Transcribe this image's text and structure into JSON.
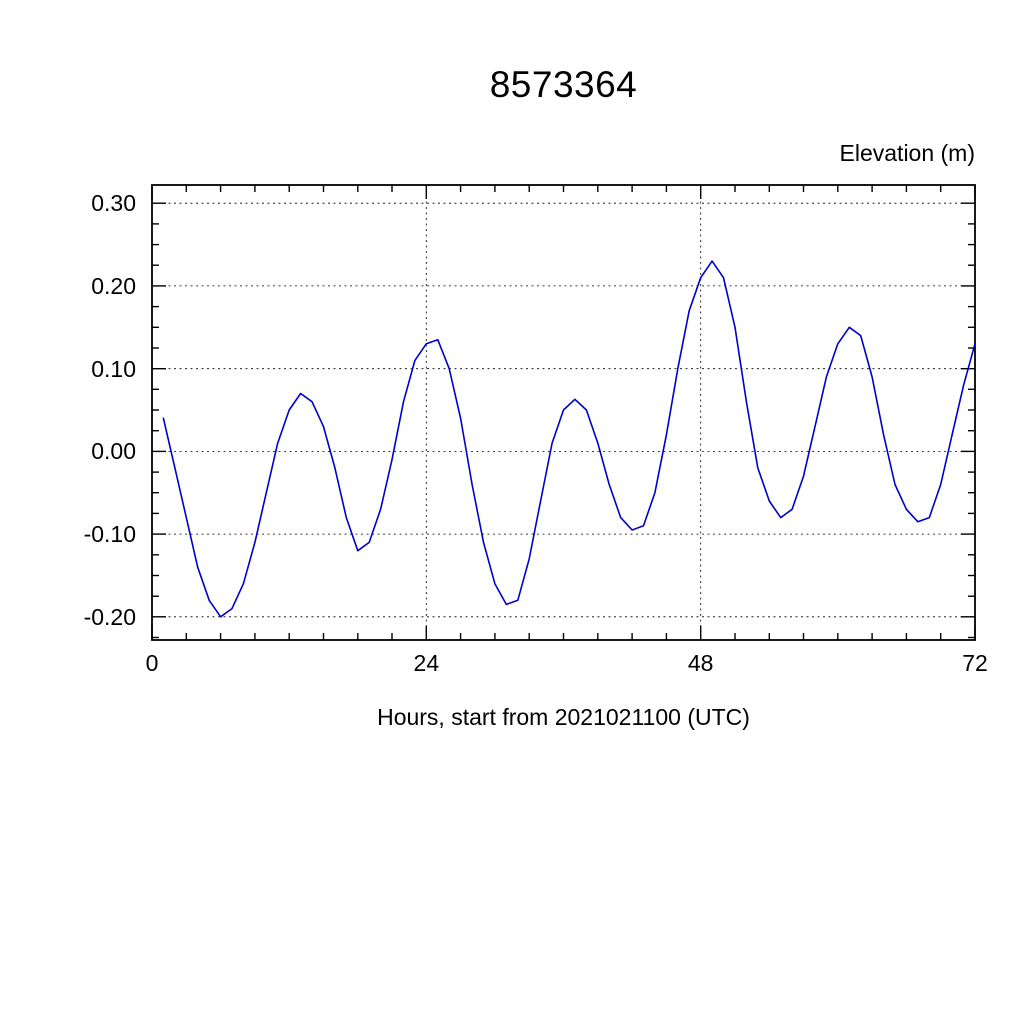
{
  "chart_data": {
    "type": "line",
    "title": "8573364",
    "xlabel": "Hours, start from 2021021100 (UTC)",
    "ylabel": "Elevation (m)",
    "xlim": [
      0,
      72
    ],
    "ylim": [
      -0.228,
      0.322
    ],
    "x_major_ticks": [
      0,
      24,
      48,
      72
    ],
    "x_tick_labels": [
      "0",
      "24",
      "48",
      "72"
    ],
    "x_minor_step": 3,
    "y_major_ticks": [
      0.3,
      0.2,
      0.1,
      0.0,
      -0.1,
      -0.2
    ],
    "y_tick_labels": [
      "0.30",
      "0.20",
      "0.10",
      "0.00",
      "-0.10",
      "-0.20"
    ],
    "y_minor_step": 0.025,
    "grid": true,
    "legend": "none",
    "line_color": "#0000c8",
    "series": [
      {
        "name": "elevation",
        "x": [
          1,
          2,
          3,
          4,
          5,
          6,
          7,
          8,
          9,
          10,
          11,
          12,
          13,
          14,
          15,
          16,
          17,
          18,
          19,
          20,
          21,
          22,
          23,
          24,
          25,
          26,
          27,
          28,
          29,
          30,
          31,
          32,
          33,
          34,
          35,
          36,
          37,
          38,
          39,
          40,
          41,
          42,
          43,
          44,
          45,
          46,
          47,
          48,
          49,
          50,
          51,
          52,
          53,
          54,
          55,
          56,
          57,
          58,
          59,
          60,
          61,
          62,
          63,
          64,
          65,
          66,
          67,
          68,
          69,
          70,
          71,
          72
        ],
        "values": [
          0.04,
          -0.02,
          -0.08,
          -0.14,
          -0.18,
          -0.2,
          -0.19,
          -0.16,
          -0.11,
          -0.05,
          0.01,
          0.05,
          0.07,
          0.06,
          0.03,
          -0.02,
          -0.08,
          -0.12,
          -0.11,
          -0.07,
          -0.01,
          0.06,
          0.11,
          0.13,
          0.135,
          0.1,
          0.04,
          -0.04,
          -0.11,
          -0.16,
          -0.185,
          -0.18,
          -0.13,
          -0.06,
          0.01,
          0.05,
          0.063,
          0.05,
          0.01,
          -0.04,
          -0.08,
          -0.095,
          -0.09,
          -0.05,
          0.02,
          0.1,
          0.17,
          0.21,
          0.23,
          0.21,
          0.15,
          0.06,
          -0.02,
          -0.06,
          -0.08,
          -0.07,
          -0.03,
          0.03,
          0.09,
          0.13,
          0.15,
          0.14,
          0.09,
          0.02,
          -0.04,
          -0.07,
          -0.085,
          -0.08,
          -0.04,
          0.02,
          0.08,
          0.13
        ]
      }
    ]
  }
}
